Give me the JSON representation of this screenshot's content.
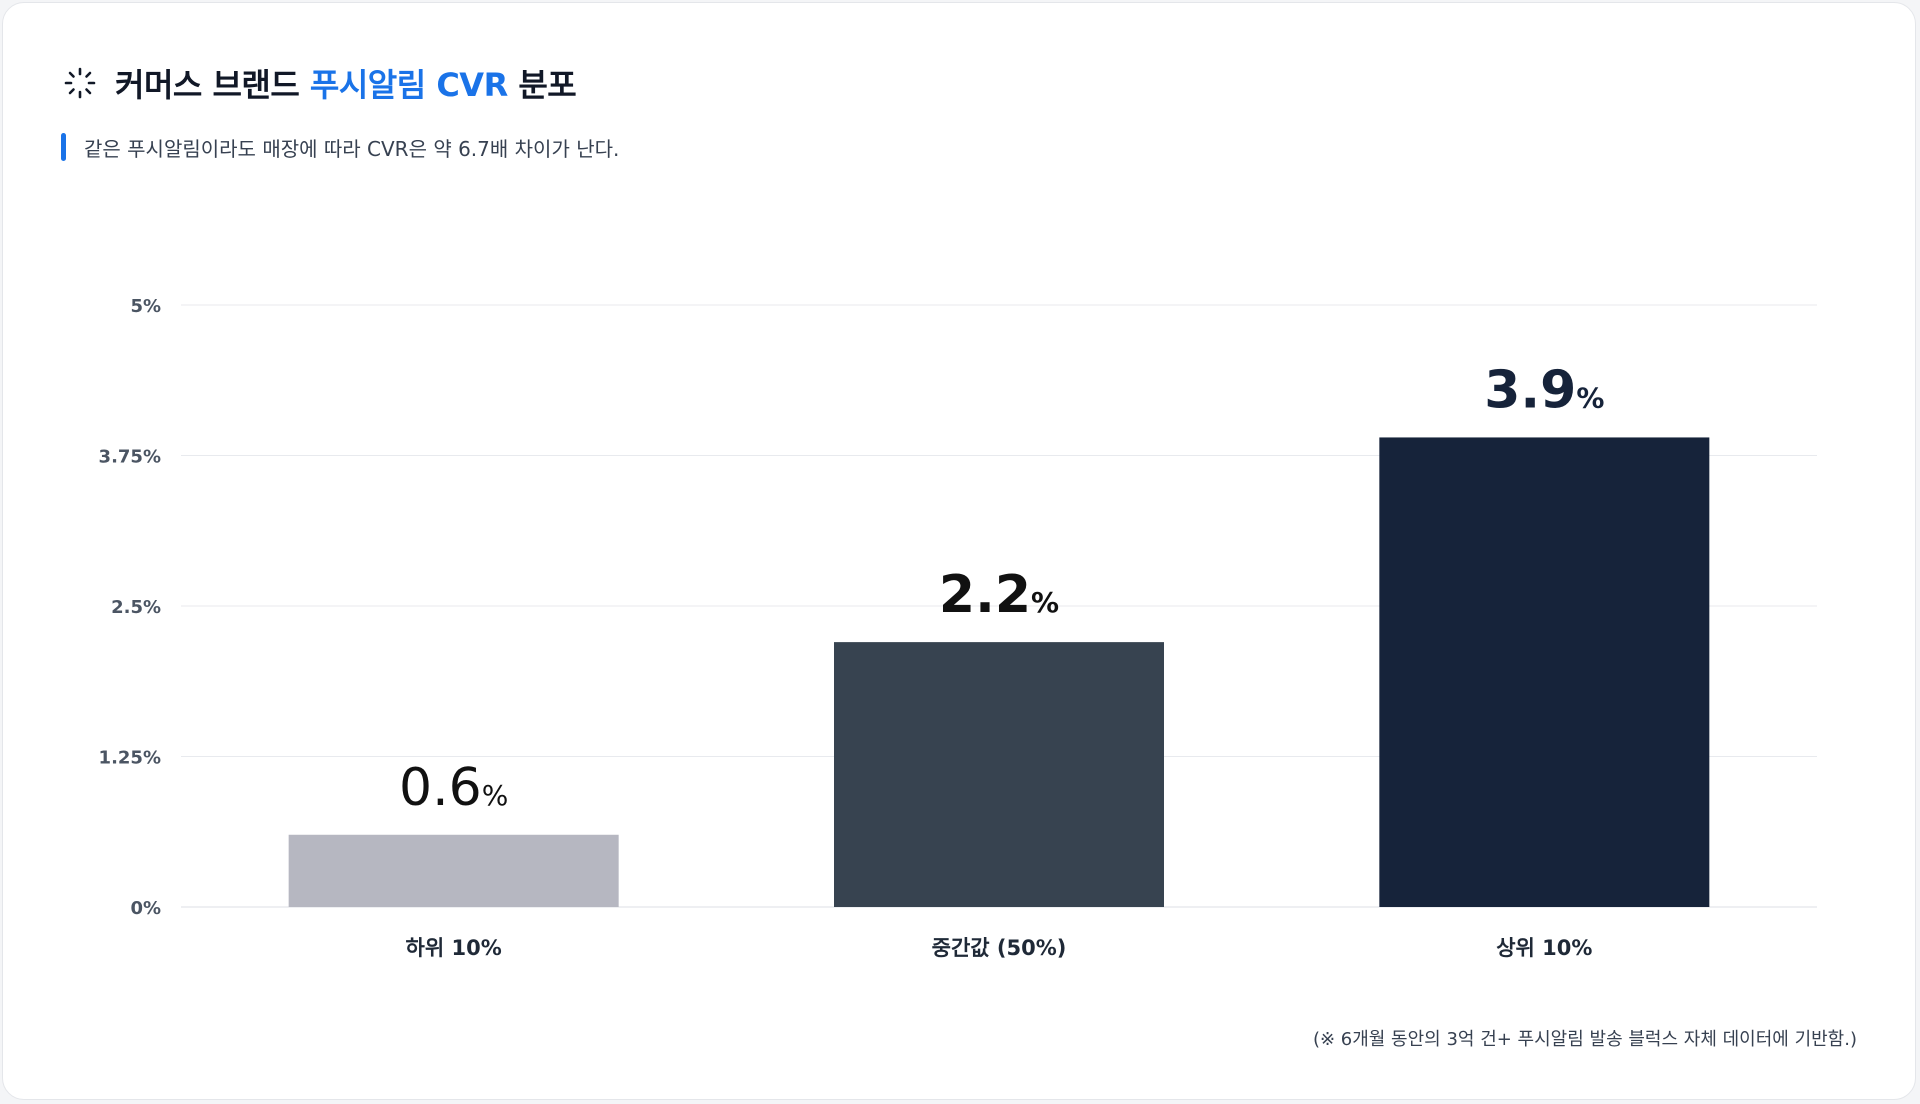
{
  "header": {
    "title_prefix": "커머스 브랜드 ",
    "title_accent": "푸시알림 CVR",
    "title_suffix": " 분포",
    "subtitle": "같은 푸시알림이라도 매장에 따라 CVR은 약 6.7배 차이가 난다.",
    "icon": "loader-icon"
  },
  "colors": {
    "accent": "#1a73e8",
    "bars": [
      "#b6b7c1",
      "#374350",
      "#16233a"
    ],
    "grid": "#e8eaee",
    "tick_text": "#4b5563"
  },
  "chart_data": {
    "type": "bar",
    "categories": [
      "하위 10%",
      "중간값 (50%)",
      "상위 10%"
    ],
    "values": [
      0.6,
      2.2,
      3.9
    ],
    "value_labels": [
      "0.6",
      "2.2",
      "3.9"
    ],
    "value_unit": "%",
    "y_ticks": [
      "0%",
      "1.25%",
      "2.5%",
      "3.75%",
      "5%"
    ],
    "y_tick_values": [
      0,
      1.25,
      2.5,
      3.75,
      5
    ],
    "ylim": [
      0,
      5
    ],
    "grid": true,
    "title": "",
    "xlabel": "",
    "ylabel": ""
  },
  "footnote": "(※ 6개월 동안의 3억 건+ 푸시알림 발송 블럭스 자체 데이터에 기반함.)"
}
